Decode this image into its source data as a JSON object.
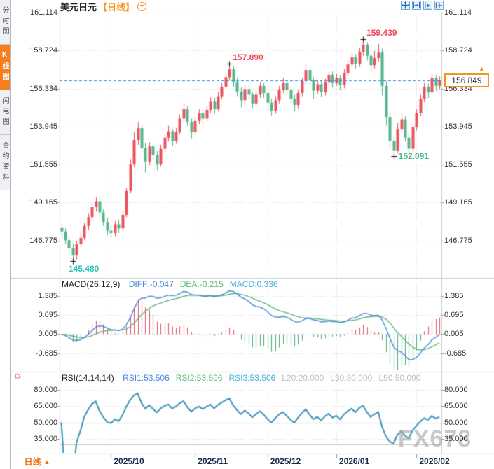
{
  "sidebar": {
    "items": [
      {
        "label": "分时图",
        "active": false
      },
      {
        "label": "K线图",
        "active": true
      },
      {
        "label": "闪电图",
        "active": false
      },
      {
        "label": "合约资料",
        "active": false
      }
    ]
  },
  "header": {
    "title": "美元日元",
    "period_tag": "【日线】",
    "add_icon": "+",
    "toolbar": [
      {
        "name": "crosshair-move-icon"
      },
      {
        "name": "y-axis-scale-icon"
      },
      {
        "name": "x-axis-scale-icon"
      },
      {
        "name": "popout-icon"
      }
    ]
  },
  "bottom_bar": {
    "period_label": "日线",
    "dropdown_arrow": "▲"
  },
  "watermark": "FX678",
  "chart_data": {
    "type": "candlestick",
    "symbol": "美元日元",
    "period": "日线",
    "y_axis_labels": [
      "161.114",
      "158.724",
      "156.334",
      "153.945",
      "151.555",
      "149.165",
      "146.775"
    ],
    "y_axis_values": [
      161.114,
      158.724,
      156.334,
      153.945,
      151.555,
      149.165,
      146.775
    ],
    "x_axis_labels": [
      "2025/10",
      "2025/11",
      "2025/12",
      "2026/01",
      "2026/02"
    ],
    "month_start_indices": [
      13,
      35,
      54,
      72,
      93
    ],
    "last_price": 156.849,
    "last_price_label": "156.849",
    "price_arrow": "▲",
    "annotations": [
      {
        "text": "145.480",
        "index": 3,
        "price": 145.48,
        "side": "low",
        "color": "#2fc1b4"
      },
      {
        "text": "157.890",
        "index": 44,
        "price": 157.89,
        "side": "high",
        "color": "#ef4a5e"
      },
      {
        "text": "159.439",
        "index": 79,
        "price": 159.439,
        "side": "high",
        "color": "#ef4a5e"
      },
      {
        "text": "152.091",
        "index": 87,
        "price": 152.091,
        "side": "low",
        "color": "#4bb385"
      }
    ],
    "colors": {
      "up": "#e9545f",
      "down": "#54b68a",
      "diff_line": "#4a89dc",
      "dea_line": "#5cb87c",
      "hist_pos": "#e05565",
      "hist_neg": "#4aa97a",
      "rsi1": "#4a89dc",
      "rsi2": "#5cb87c",
      "rsi3": "#7cc4e8",
      "last_price_line": "#3388dd",
      "accent": "#f7941d",
      "grid": "#d8d8d8",
      "border": "#c9ccd1"
    },
    "macd": {
      "title": "MACD(26,12,9)",
      "params": [
        26,
        12,
        9
      ],
      "values": [
        {
          "text": "DIFF:-0.047",
          "color": "#4a89dc"
        },
        {
          "text": "DEA:-0.215",
          "color": "#5cb87c"
        },
        {
          "text": "MACD:0.336",
          "color": "#4db3dd"
        }
      ],
      "y_axis_labels": [
        "1.385",
        "0.695",
        "0.005",
        "-0.685"
      ],
      "y_axis_values": [
        1.385,
        0.695,
        0.005,
        -0.685
      ]
    },
    "rsi": {
      "title": "RSI(14,14,14)",
      "params": [
        14,
        14,
        14
      ],
      "values": [
        {
          "text": "RSI1:53.506",
          "color": "#4a89dc"
        },
        {
          "text": "RSI2:53.506",
          "color": "#5cb87c"
        },
        {
          "text": "RSI3:53.506",
          "color": "#4db3dd"
        },
        {
          "text": "L20:20.000",
          "color": "#c0c0c0"
        },
        {
          "text": "L30:30.000",
          "color": "#c0c0c0"
        },
        {
          "text": "L50:50.000",
          "color": "#c0c0c0"
        }
      ],
      "y_axis_labels": [
        "80.000",
        "65.000",
        "50.000",
        "35.000"
      ],
      "y_axis_values": [
        80,
        65,
        50,
        35
      ],
      "levels": [
        50,
        30
      ]
    },
    "candles": [
      [
        147.6,
        147.85,
        146.9,
        147.35
      ],
      [
        147.35,
        147.55,
        146.55,
        146.8
      ],
      [
        146.8,
        147.05,
        146.05,
        146.3
      ],
      [
        146.3,
        146.6,
        145.48,
        145.85
      ],
      [
        145.85,
        146.75,
        145.6,
        146.55
      ],
      [
        146.55,
        147.25,
        146.3,
        146.95
      ],
      [
        146.95,
        147.9,
        146.8,
        147.7
      ],
      [
        147.7,
        148.5,
        147.45,
        148.25
      ],
      [
        148.25,
        149.1,
        148.0,
        148.9
      ],
      [
        148.9,
        149.5,
        148.6,
        149.25
      ],
      [
        149.25,
        149.4,
        148.3,
        148.55
      ],
      [
        148.55,
        148.75,
        147.7,
        147.95
      ],
      [
        147.95,
        148.2,
        147.15,
        147.4
      ],
      [
        147.4,
        147.75,
        146.95,
        147.25
      ],
      [
        147.25,
        148.05,
        147.05,
        147.8
      ],
      [
        147.8,
        148.1,
        147.25,
        147.55
      ],
      [
        147.55,
        148.65,
        147.4,
        148.4
      ],
      [
        148.4,
        150.1,
        148.25,
        149.9
      ],
      [
        149.9,
        151.9,
        149.75,
        151.6
      ],
      [
        151.6,
        153.6,
        151.4,
        153.1
      ],
      [
        153.1,
        154.25,
        152.8,
        153.85
      ],
      [
        153.85,
        154.05,
        152.3,
        152.6
      ],
      [
        152.6,
        152.95,
        151.05,
        151.75
      ],
      [
        151.75,
        152.95,
        151.55,
        152.7
      ],
      [
        152.7,
        152.9,
        151.85,
        152.15
      ],
      [
        152.15,
        152.4,
        151.2,
        151.6
      ],
      [
        151.6,
        152.8,
        151.45,
        152.55
      ],
      [
        152.55,
        153.5,
        152.35,
        153.25
      ],
      [
        153.25,
        154.0,
        153.0,
        153.65
      ],
      [
        153.65,
        153.8,
        152.75,
        153.05
      ],
      [
        153.05,
        153.85,
        152.9,
        153.6
      ],
      [
        153.6,
        154.7,
        153.45,
        154.45
      ],
      [
        154.45,
        155.45,
        154.25,
        155.05
      ],
      [
        155.05,
        155.25,
        154.0,
        154.25
      ],
      [
        154.25,
        154.45,
        153.2,
        153.6
      ],
      [
        153.6,
        154.55,
        153.4,
        154.3
      ],
      [
        154.3,
        155.05,
        154.1,
        154.8
      ],
      [
        154.8,
        155.0,
        154.1,
        154.45
      ],
      [
        154.45,
        155.25,
        154.25,
        155.0
      ],
      [
        155.0,
        155.8,
        154.8,
        155.55
      ],
      [
        155.55,
        155.75,
        154.75,
        155.05
      ],
      [
        155.05,
        156.1,
        154.9,
        155.85
      ],
      [
        155.85,
        156.7,
        155.65,
        156.45
      ],
      [
        156.45,
        157.3,
        156.25,
        157.05
      ],
      [
        157.05,
        157.89,
        156.85,
        157.55
      ],
      [
        157.55,
        157.75,
        156.45,
        156.75
      ],
      [
        156.75,
        157.0,
        155.85,
        156.15
      ],
      [
        156.15,
        156.4,
        155.15,
        155.6
      ],
      [
        155.6,
        156.55,
        155.4,
        156.3
      ],
      [
        156.3,
        156.55,
        155.65,
        155.95
      ],
      [
        155.95,
        156.15,
        155.1,
        155.4
      ],
      [
        155.4,
        156.2,
        155.2,
        155.95
      ],
      [
        155.95,
        156.75,
        155.75,
        156.5
      ],
      [
        156.5,
        156.7,
        155.75,
        156.05
      ],
      [
        156.05,
        156.25,
        154.85,
        155.45
      ],
      [
        155.45,
        155.7,
        154.65,
        154.95
      ],
      [
        154.95,
        155.85,
        154.75,
        155.6
      ],
      [
        155.6,
        156.5,
        155.4,
        156.25
      ],
      [
        156.25,
        157.0,
        156.05,
        156.7
      ],
      [
        156.7,
        156.9,
        155.95,
        156.25
      ],
      [
        156.25,
        156.45,
        155.4,
        155.7
      ],
      [
        155.7,
        155.95,
        154.9,
        155.3
      ],
      [
        155.3,
        156.25,
        155.1,
        156.05
      ],
      [
        156.05,
        157.0,
        155.85,
        156.8
      ],
      [
        156.8,
        157.85,
        156.6,
        157.5
      ],
      [
        157.5,
        157.7,
        156.55,
        156.85
      ],
      [
        156.85,
        157.05,
        155.7,
        156.2
      ],
      [
        156.2,
        156.85,
        156.0,
        156.6
      ],
      [
        156.6,
        156.8,
        155.8,
        156.1
      ],
      [
        156.1,
        156.95,
        155.9,
        156.75
      ],
      [
        156.75,
        157.45,
        156.55,
        157.2
      ],
      [
        157.2,
        157.4,
        156.4,
        156.7
      ],
      [
        156.7,
        157.25,
        156.5,
        157.0
      ],
      [
        157.0,
        157.2,
        156.25,
        156.55
      ],
      [
        156.55,
        157.55,
        156.35,
        157.3
      ],
      [
        157.3,
        158.1,
        157.1,
        157.85
      ],
      [
        157.85,
        158.6,
        157.65,
        158.3
      ],
      [
        158.3,
        158.5,
        157.6,
        157.9
      ],
      [
        157.9,
        158.9,
        157.7,
        158.65
      ],
      [
        158.65,
        159.439,
        158.4,
        159.1
      ],
      [
        159.1,
        159.25,
        158.1,
        158.4
      ],
      [
        158.4,
        158.6,
        157.3,
        157.8
      ],
      [
        157.8,
        158.7,
        157.6,
        158.25
      ],
      [
        158.25,
        159.15,
        158.05,
        158.6
      ],
      [
        158.6,
        158.85,
        155.9,
        156.5
      ],
      [
        156.5,
        156.8,
        154.0,
        154.55
      ],
      [
        154.55,
        154.8,
        152.6,
        153.05
      ],
      [
        153.05,
        153.3,
        152.091,
        152.45
      ],
      [
        152.45,
        154.2,
        152.3,
        153.8
      ],
      [
        153.8,
        154.75,
        153.55,
        154.4
      ],
      [
        154.4,
        154.6,
        153.0,
        153.25
      ],
      [
        153.25,
        153.5,
        152.2,
        152.55
      ],
      [
        152.55,
        154.1,
        152.35,
        153.9
      ],
      [
        153.9,
        155.05,
        153.7,
        154.8
      ],
      [
        154.8,
        155.95,
        154.6,
        155.7
      ],
      [
        155.7,
        156.7,
        155.5,
        156.45
      ],
      [
        156.45,
        156.65,
        155.75,
        156.1
      ],
      [
        156.1,
        157.3,
        155.95,
        157.0
      ],
      [
        157.0,
        157.2,
        156.2,
        156.5
      ],
      [
        156.5,
        157.1,
        156.3,
        156.849
      ]
    ]
  }
}
